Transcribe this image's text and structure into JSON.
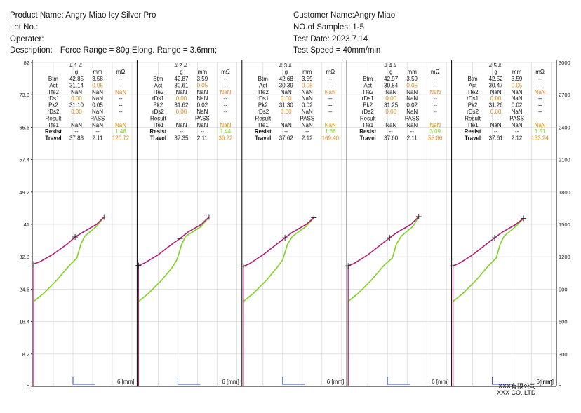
{
  "header": {
    "product_label": "Product Name:",
    "product_value": "Angry Miao Icy Silver Pro",
    "lot_label": "Lot No.:",
    "lot_value": "",
    "operator_label": "Operater:",
    "operator_value": "",
    "description_label": "Description:",
    "description_value": "Force Range = 80g;Elong. Range = 3.6mm;",
    "customer_label": "Customer Name:",
    "customer_value": "Angry Miao",
    "samples_label": "NO.of Samples:",
    "samples_value": "1-5",
    "test_date_label": "Test Date:",
    "test_date_value": "2023.7.14",
    "test_speed_label": "Test Speed =",
    "test_speed_value": "40mm/min"
  },
  "footer": {
    "company_cn": "XXX有限公司",
    "company_en": "XXX CO.,LTD",
    "mm_label": "[mm]"
  },
  "colors": {
    "press": "#b0207a",
    "release": "#7ed321",
    "axis": "#000000",
    "grid": "#d0d0d0",
    "resistance": "#2a4fd6",
    "nan_orange": "#e08a1a",
    "green_value": "#7ed321"
  },
  "chart_data": {
    "type": "line",
    "left_axis": {
      "min": 0,
      "max": 82,
      "ticks": [
        "0",
        "8.2",
        "16.4",
        "24.6",
        "32.8",
        "41",
        "49.2",
        "57.4",
        "65.6",
        "73.8",
        "82"
      ]
    },
    "right_axis": {
      "min": 0,
      "max": 3000,
      "ticks": [
        "0",
        "300",
        "600",
        "900",
        "1200",
        "1500",
        "1800",
        "2100",
        "2400",
        "2700",
        "3000"
      ]
    },
    "x_axis_label": "6 [mm]",
    "x_range": [
      0,
      6
    ],
    "table_units": {
      "g": "g",
      "mm": "mm",
      "ohm": "mΩ"
    },
    "samples": [
      {
        "title": "# 1 #",
        "rows": [
          {
            "label": "Btm",
            "g": "42.85",
            "mm": "3.58",
            "r": "--"
          },
          {
            "label": "Act",
            "g": "31.14",
            "mm": "0.05",
            "r": "--"
          },
          {
            "label": "Tfe2",
            "g": "NaN",
            "mm": "NaN",
            "r": "NaN"
          },
          {
            "label": "rDs1",
            "g": "0.00",
            "mm": "NaN",
            "r": "--"
          },
          {
            "label": "Pk2",
            "g": "31.10",
            "mm": "0.05",
            "r": "--"
          },
          {
            "label": "rDs2",
            "g": "0.00",
            "mm": "NaN",
            "r": "--"
          },
          {
            "label": "Result",
            "g": "",
            "mm": "PASS",
            "r": ""
          },
          {
            "label": "Tfe1",
            "g": "NaN",
            "mm": "NaN",
            "r": "NaN"
          },
          {
            "label": "Resist",
            "g": "--",
            "mm": "--",
            "r": "1.46"
          },
          {
            "label": "Travel",
            "g": "37.83",
            "mm": "2.11",
            "r": "120.72"
          }
        ],
        "press": [
          [
            0.0,
            31.0
          ],
          [
            0.3,
            31.5
          ],
          [
            1.0,
            33.5
          ],
          [
            1.7,
            36.0
          ],
          [
            2.11,
            37.8
          ],
          [
            2.5,
            39.0
          ],
          [
            3.2,
            41.0
          ],
          [
            3.58,
            42.85
          ]
        ],
        "release": [
          [
            0.0,
            21.5
          ],
          [
            0.5,
            23.5
          ],
          [
            1.2,
            27.0
          ],
          [
            1.8,
            30.5
          ],
          [
            2.2,
            32.5
          ],
          [
            2.4,
            36.0
          ],
          [
            2.6,
            38.0
          ],
          [
            3.2,
            40.5
          ],
          [
            3.58,
            42.85
          ]
        ],
        "resistance_spike_x": 2.0
      },
      {
        "title": "# 2 #",
        "rows": [
          {
            "label": "Btm",
            "g": "42.87",
            "mm": "3.59",
            "r": "--"
          },
          {
            "label": "Act",
            "g": "30.61",
            "mm": "0.05",
            "r": "--"
          },
          {
            "label": "Tfe2",
            "g": "NaN",
            "mm": "NaN",
            "r": "NaN"
          },
          {
            "label": "rDs1",
            "g": "0.00",
            "mm": "NaN",
            "r": "--"
          },
          {
            "label": "Pk2",
            "g": "31.62",
            "mm": "0.02",
            "r": "--"
          },
          {
            "label": "rDs2",
            "g": "0.00",
            "mm": "NaN",
            "r": "--"
          },
          {
            "label": "Result",
            "g": "",
            "mm": "PASS",
            "r": ""
          },
          {
            "label": "Tfe1",
            "g": "NaN",
            "mm": "NaN",
            "r": "NaN"
          },
          {
            "label": "Resist",
            "g": "--",
            "mm": "--",
            "r": "1.44"
          },
          {
            "label": "Travel",
            "g": "37.35",
            "mm": "2.11",
            "r": "36.22"
          }
        ],
        "press": [
          [
            0.0,
            30.6
          ],
          [
            0.3,
            31.2
          ],
          [
            1.0,
            33.3
          ],
          [
            1.7,
            36.0
          ],
          [
            2.11,
            37.4
          ],
          [
            2.5,
            39.0
          ],
          [
            3.2,
            41.0
          ],
          [
            3.59,
            42.87
          ]
        ],
        "release": [
          [
            0.0,
            21.5
          ],
          [
            0.5,
            23.5
          ],
          [
            1.2,
            27.0
          ],
          [
            1.7,
            30.0
          ],
          [
            1.95,
            32.0
          ],
          [
            2.2,
            36.0
          ],
          [
            2.4,
            38.0
          ],
          [
            3.2,
            40.5
          ],
          [
            3.59,
            42.87
          ]
        ],
        "resistance_spike_x": 2.0
      },
      {
        "title": "# 3 #",
        "rows": [
          {
            "label": "Btm",
            "g": "42.68",
            "mm": "3.59",
            "r": "--"
          },
          {
            "label": "Act",
            "g": "30.39",
            "mm": "0.05",
            "r": "--"
          },
          {
            "label": "Tfe2",
            "g": "NaN",
            "mm": "NaN",
            "r": "NaN"
          },
          {
            "label": "rDs1",
            "g": "0.00",
            "mm": "NaN",
            "r": "--"
          },
          {
            "label": "Pk2",
            "g": "31.30",
            "mm": "0.02",
            "r": "--"
          },
          {
            "label": "rDs2",
            "g": "0.00",
            "mm": "NaN",
            "r": "--"
          },
          {
            "label": "Result",
            "g": "",
            "mm": "PASS",
            "r": ""
          },
          {
            "label": "Tfe1",
            "g": "NaN",
            "mm": "NaN",
            "r": "NaN"
          },
          {
            "label": "Resist",
            "g": "--",
            "mm": "--",
            "r": "1.66"
          },
          {
            "label": "Travel",
            "g": "37.62",
            "mm": "2.12",
            "r": "169.40"
          }
        ],
        "press": [
          [
            0.0,
            30.4
          ],
          [
            0.3,
            31.0
          ],
          [
            1.0,
            33.3
          ],
          [
            1.7,
            36.0
          ],
          [
            2.12,
            37.6
          ],
          [
            2.5,
            39.0
          ],
          [
            3.2,
            41.0
          ],
          [
            3.59,
            42.68
          ]
        ],
        "release": [
          [
            0.0,
            21.5
          ],
          [
            0.5,
            23.5
          ],
          [
            1.2,
            27.0
          ],
          [
            1.7,
            30.0
          ],
          [
            2.0,
            32.0
          ],
          [
            2.25,
            36.0
          ],
          [
            2.5,
            38.0
          ],
          [
            3.2,
            40.5
          ],
          [
            3.59,
            42.68
          ]
        ],
        "resistance_spike_x": 2.0
      },
      {
        "title": "# 4 #",
        "rows": [
          {
            "label": "Btm",
            "g": "42.97",
            "mm": "3.59",
            "r": "--"
          },
          {
            "label": "Act",
            "g": "30.54",
            "mm": "0.05",
            "r": "--"
          },
          {
            "label": "Tfe2",
            "g": "NaN",
            "mm": "NaN",
            "r": "NaN"
          },
          {
            "label": "rDs1",
            "g": "0.00",
            "mm": "NaN",
            "r": "--"
          },
          {
            "label": "Pk2",
            "g": "31.25",
            "mm": "0.02",
            "r": "--"
          },
          {
            "label": "rDs2",
            "g": "0.00",
            "mm": "NaN",
            "r": "--"
          },
          {
            "label": "Result",
            "g": "",
            "mm": "PASS",
            "r": ""
          },
          {
            "label": "Tfe1",
            "g": "NaN",
            "mm": "NaN",
            "r": "NaN"
          },
          {
            "label": "Resist",
            "g": "--",
            "mm": "--",
            "r": "3.09"
          },
          {
            "label": "Travel",
            "g": "37.60",
            "mm": "2.11",
            "r": "55.66"
          }
        ],
        "press": [
          [
            0.0,
            30.5
          ],
          [
            0.3,
            31.1
          ],
          [
            1.0,
            33.3
          ],
          [
            1.7,
            36.0
          ],
          [
            2.11,
            37.6
          ],
          [
            2.5,
            39.0
          ],
          [
            3.2,
            41.0
          ],
          [
            3.59,
            42.97
          ]
        ],
        "release": [
          [
            0.0,
            21.5
          ],
          [
            0.5,
            23.5
          ],
          [
            1.2,
            27.0
          ],
          [
            1.8,
            30.5
          ],
          [
            2.25,
            32.5
          ],
          [
            2.45,
            36.0
          ],
          [
            2.7,
            38.0
          ],
          [
            3.3,
            40.5
          ],
          [
            3.59,
            42.97
          ]
        ],
        "resistance_spike_x": 2.0
      },
      {
        "title": "# 5 #",
        "rows": [
          {
            "label": "Btm",
            "g": "42.52",
            "mm": "3.59",
            "r": "--"
          },
          {
            "label": "Act",
            "g": "30.47",
            "mm": "0.05",
            "r": "--"
          },
          {
            "label": "Tfe2",
            "g": "NaN",
            "mm": "NaN",
            "r": "NaN"
          },
          {
            "label": "rDs1",
            "g": "0.00",
            "mm": "NaN",
            "r": "--"
          },
          {
            "label": "Pk2",
            "g": "31.26",
            "mm": "0.02",
            "r": "--"
          },
          {
            "label": "rDs2",
            "g": "0.00",
            "mm": "NaN",
            "r": "--"
          },
          {
            "label": "Result",
            "g": "",
            "mm": "PASS",
            "r": ""
          },
          {
            "label": "Tfe1",
            "g": "NaN",
            "mm": "NaN",
            "r": "NaN"
          },
          {
            "label": "Resist",
            "g": "--",
            "mm": "--",
            "r": "1.51"
          },
          {
            "label": "Travel",
            "g": "37.61",
            "mm": "2.12",
            "r": "133.24"
          }
        ],
        "press": [
          [
            0.0,
            30.5
          ],
          [
            0.3,
            31.1
          ],
          [
            1.0,
            33.3
          ],
          [
            1.7,
            36.0
          ],
          [
            2.12,
            37.6
          ],
          [
            2.5,
            39.0
          ],
          [
            3.2,
            41.0
          ],
          [
            3.59,
            42.52
          ]
        ],
        "release": [
          [
            0.0,
            21.5
          ],
          [
            0.5,
            23.5
          ],
          [
            1.2,
            27.0
          ],
          [
            1.8,
            30.5
          ],
          [
            2.2,
            32.5
          ],
          [
            2.4,
            36.0
          ],
          [
            2.6,
            38.0
          ],
          [
            3.2,
            40.5
          ],
          [
            3.59,
            42.52
          ]
        ],
        "resistance_spike_x": 2.0
      }
    ]
  }
}
